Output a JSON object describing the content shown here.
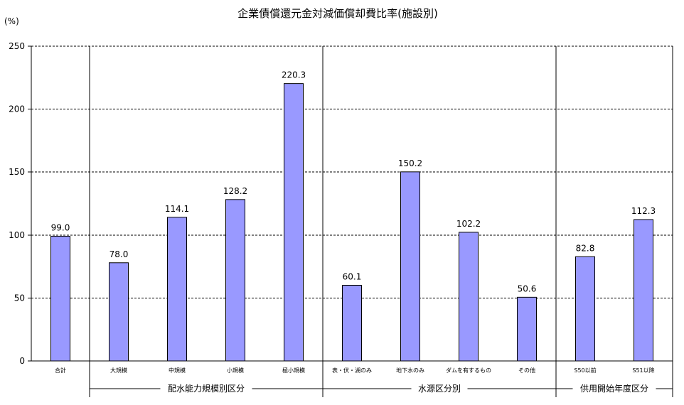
{
  "chart_data": {
    "type": "bar",
    "title": "企業債償還元金対減価償却費比率(施設別)",
    "unit_label": "(%)",
    "xlabel": "",
    "ylabel": "",
    "ylim": [
      0,
      250
    ],
    "yticks": [
      0,
      50,
      100,
      150,
      200,
      250
    ],
    "ytick_labels": [
      "0",
      "50",
      "100",
      "150",
      "200",
      "250"
    ],
    "grid": "horizontal-dashed",
    "categories": [
      "合計",
      "大規模",
      "中規模",
      "小規模",
      "極小規模",
      "表・伏・湖のみ",
      "地下水のみ",
      "ダムを有するもの",
      "その他",
      "S50以前",
      "S51以降"
    ],
    "values": [
      99.0,
      78.0,
      114.1,
      128.2,
      220.3,
      60.1,
      150.2,
      102.2,
      50.6,
      82.8,
      112.3
    ],
    "value_labels": [
      "99.0",
      "78.0",
      "114.1",
      "128.2",
      "220.3",
      "60.1",
      "150.2",
      "102.2",
      "50.6",
      "82.8",
      "112.3"
    ],
    "groups": [
      {
        "label": "",
        "start": 0,
        "end": 0
      },
      {
        "label": "配水能力規模別区分",
        "start": 1,
        "end": 4
      },
      {
        "label": "水源区分別",
        "start": 5,
        "end": 8
      },
      {
        "label": "供用開始年度区分",
        "start": 9,
        "end": 10
      }
    ],
    "colors": {
      "bar_fill": "#9999ff",
      "bar_stroke": "#000000",
      "grid": "#000000"
    }
  }
}
